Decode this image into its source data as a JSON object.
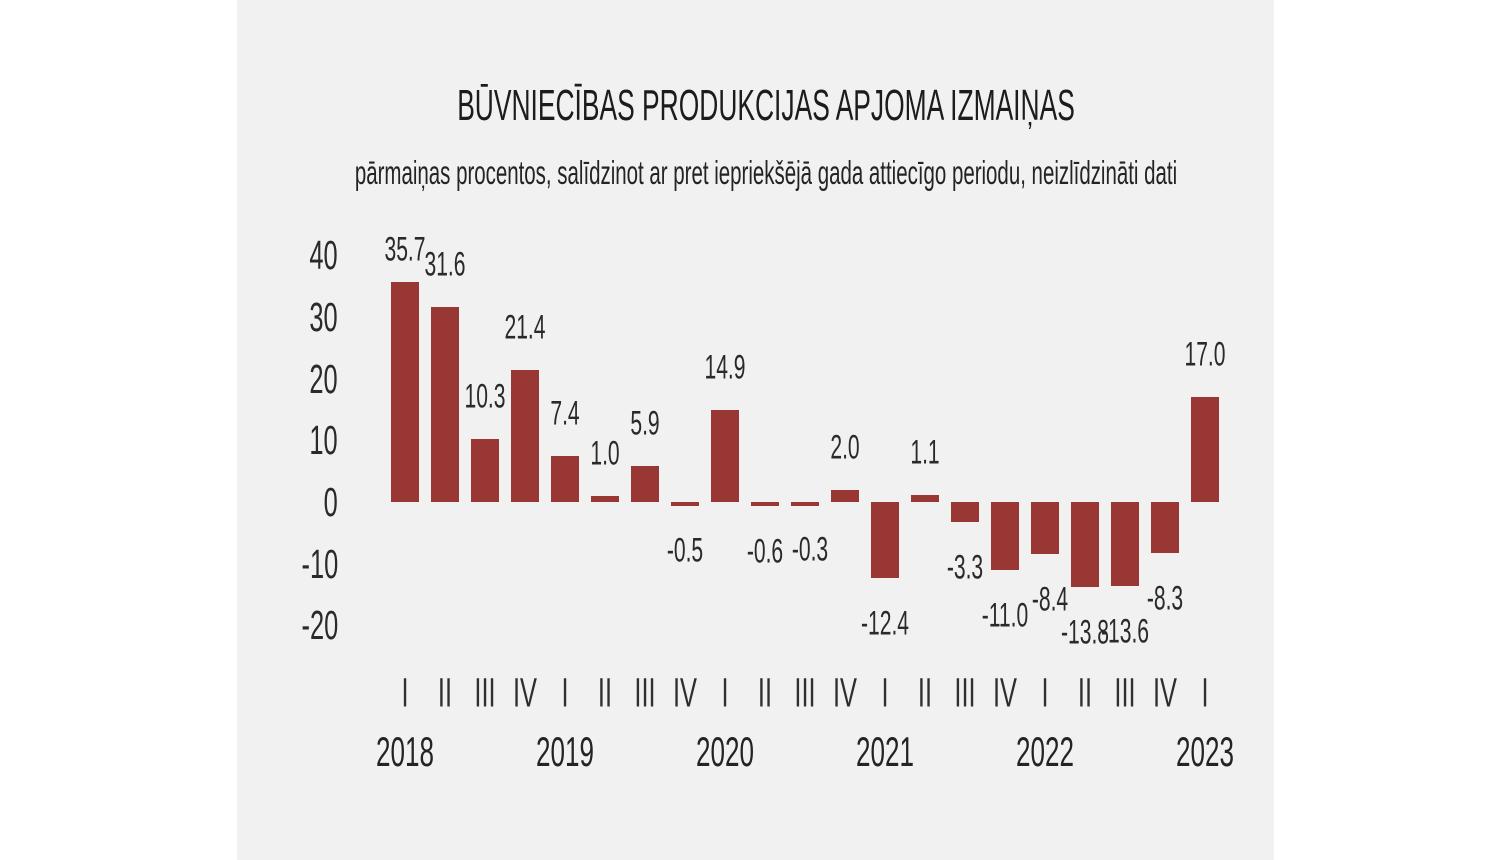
{
  "chart_data": {
    "type": "bar",
    "title": "BŪVNIECĪBAS PRODUKCIJAS APJOMA IZMAIŅAS",
    "subtitle": "pārmaiņas procentos, salīdzinot ar pret iepriekšējā gada attiecīgo periodu, neizlīdzināti dati",
    "unit": "percent change vs same period of previous year",
    "categories": [
      "2018-I",
      "2018-II",
      "2018-III",
      "2018-IV",
      "2019-I",
      "2019-II",
      "2019-III",
      "2019-IV",
      "2020-I",
      "2020-II",
      "2020-III",
      "2020-IV",
      "2021-I",
      "2021-II",
      "2021-III",
      "2021-IV",
      "2022-I",
      "2022-II",
      "2022-III",
      "2022-IV",
      "2023-I"
    ],
    "quarter_labels": [
      "I",
      "II",
      "III",
      "IV",
      "I",
      "II",
      "III",
      "IV",
      "I",
      "II",
      "III",
      "IV",
      "I",
      "II",
      "III",
      "IV",
      "I",
      "II",
      "III",
      "IV",
      "I"
    ],
    "year_labels": [
      "2018",
      "2019",
      "2020",
      "2021",
      "2022",
      "2023"
    ],
    "values": [
      35.7,
      31.6,
      10.3,
      21.4,
      7.4,
      1.0,
      5.9,
      -0.5,
      14.9,
      -0.6,
      -0.3,
      2.0,
      -12.4,
      1.1,
      -3.3,
      -11.0,
      -8.4,
      -13.8,
      -13.6,
      -8.3,
      17.0
    ],
    "yticks": [
      40,
      30,
      20,
      10,
      0,
      -10,
      -20
    ],
    "ylim": [
      -20,
      40
    ],
    "grid": false,
    "legend": false,
    "axis_lines": false,
    "data_labels": true,
    "bar_color": "#993735",
    "text_color": "#262626",
    "panel_background": "#f1f1f1",
    "page_background": "#ffffff"
  }
}
